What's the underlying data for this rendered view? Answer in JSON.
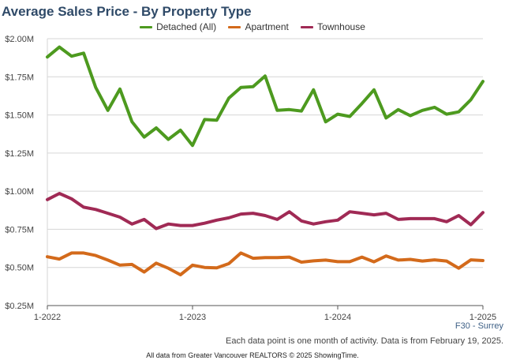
{
  "chart_data": {
    "type": "line",
    "title": "Average Sales Price - By Property Type",
    "xlabel": "",
    "ylabel": "",
    "x_tick_labels": [
      "1-2022",
      "1-2023",
      "1-2024",
      "1-2025"
    ],
    "y_tick_labels": [
      "$0.25M",
      "$0.50M",
      "$0.75M",
      "$1.00M",
      "$1.25M",
      "$1.50M",
      "$1.75M",
      "$2.00M"
    ],
    "y_ticks": [
      0.25,
      0.5,
      0.75,
      1.0,
      1.25,
      1.5,
      1.75,
      2.0
    ],
    "ylim": [
      0.25,
      2.0
    ],
    "x_range": [
      0,
      36
    ],
    "x_tick_months": [
      0,
      12,
      24,
      36
    ],
    "grid": true,
    "series": [
      {
        "name": "Detached (All)",
        "color": "#4d9a1f",
        "values": [
          1.88,
          1.945,
          1.885,
          1.905,
          1.68,
          1.53,
          1.67,
          1.455,
          1.355,
          1.415,
          1.34,
          1.4,
          1.3,
          1.47,
          1.465,
          1.61,
          1.68,
          1.685,
          1.755,
          1.53,
          1.535,
          1.525,
          1.665,
          1.455,
          1.505,
          1.49,
          1.575,
          1.665,
          1.48,
          1.535,
          1.495,
          1.53,
          1.55,
          1.505,
          1.52,
          1.6,
          1.72
        ]
      },
      {
        "name": "Apartment",
        "color": "#d36a1b",
        "values": [
          0.57,
          0.555,
          0.595,
          0.595,
          0.578,
          0.548,
          0.515,
          0.52,
          0.47,
          0.528,
          0.495,
          0.452,
          0.515,
          0.5,
          0.497,
          0.525,
          0.595,
          0.56,
          0.565,
          0.565,
          0.568,
          0.535,
          0.543,
          0.548,
          0.538,
          0.538,
          0.568,
          0.537,
          0.575,
          0.548,
          0.553,
          0.542,
          0.55,
          0.542,
          0.495,
          0.55,
          0.545
        ]
      },
      {
        "name": "Townhouse",
        "color": "#a02a55",
        "values": [
          0.945,
          0.985,
          0.95,
          0.895,
          0.88,
          0.855,
          0.83,
          0.785,
          0.815,
          0.755,
          0.785,
          0.775,
          0.775,
          0.79,
          0.81,
          0.825,
          0.85,
          0.855,
          0.84,
          0.815,
          0.865,
          0.805,
          0.785,
          0.8,
          0.81,
          0.865,
          0.855,
          0.845,
          0.855,
          0.815,
          0.82,
          0.82,
          0.82,
          0.8,
          0.84,
          0.78,
          0.86
        ]
      }
    ]
  },
  "footer": {
    "region": "F30 - Surrey",
    "note": "Each data point is one month of activity. Data is from February 19, 2025.",
    "source": "All data from Greater Vancouver REALTORS © 2025 ShowingTime."
  }
}
